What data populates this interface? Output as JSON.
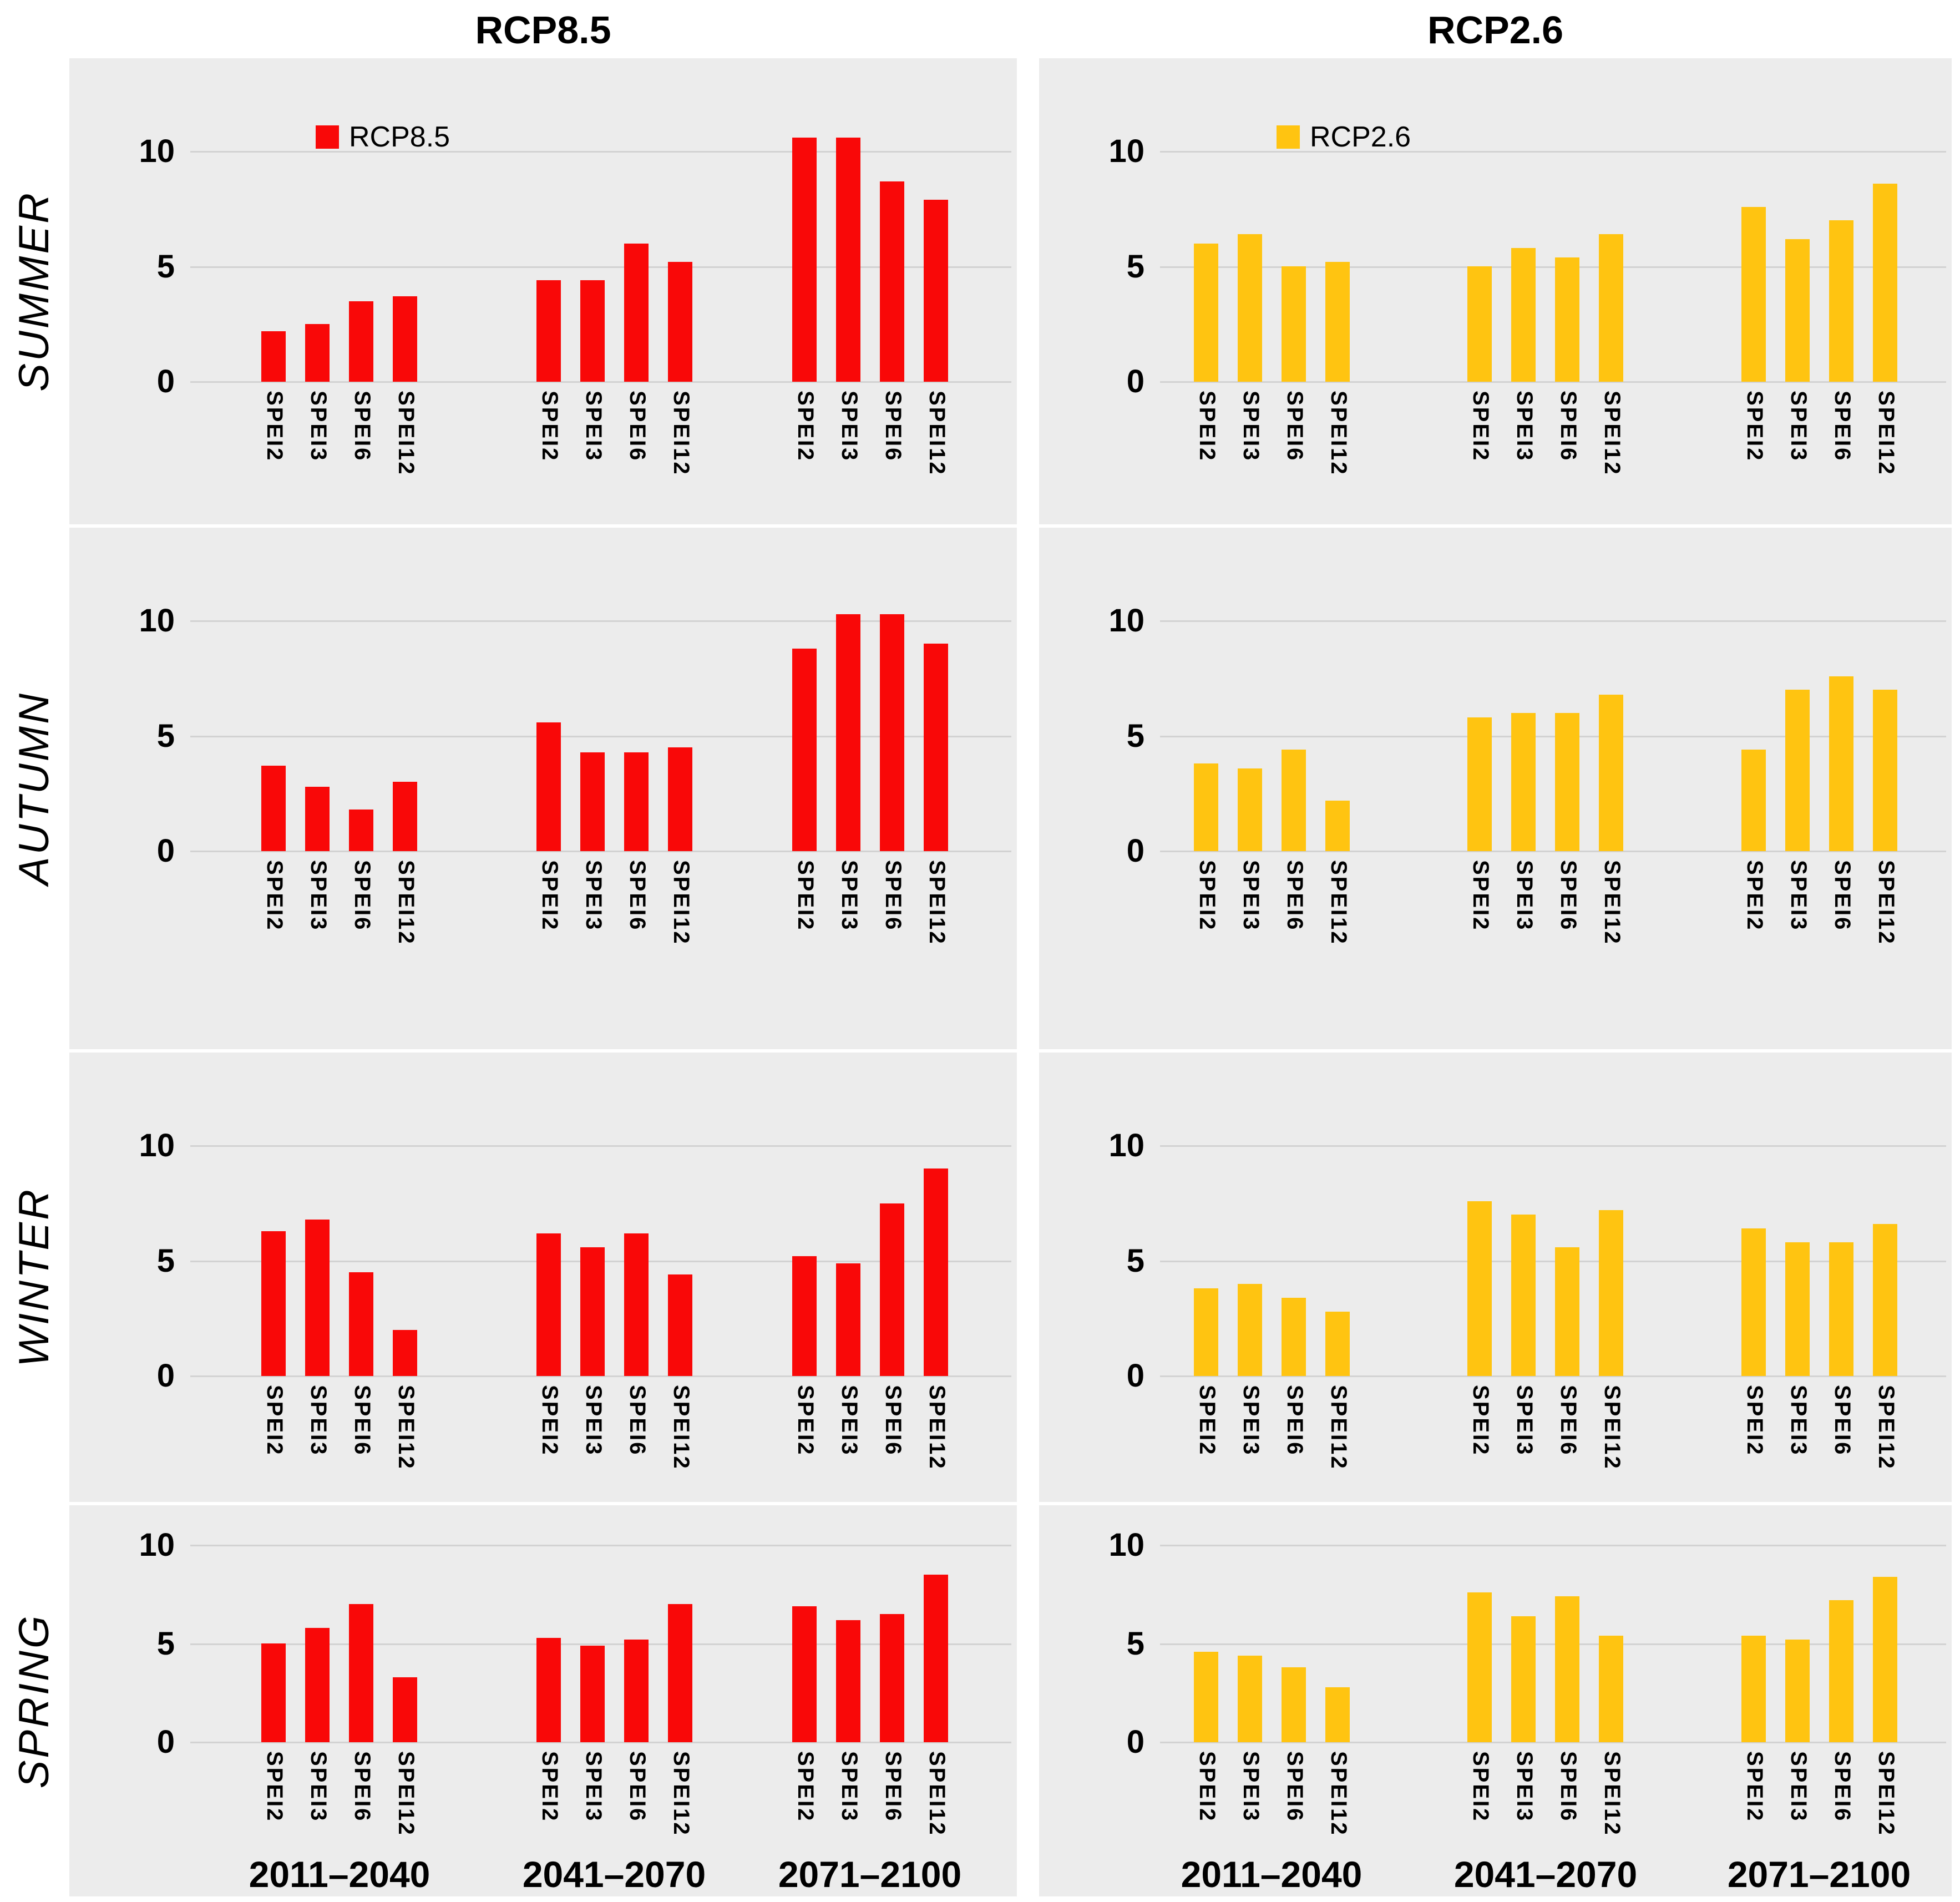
{
  "header": {
    "left_title": "RCP8.5",
    "right_title": "RCP2.6"
  },
  "seasons": [
    "SUMMER",
    "AUTUMN",
    "WINTER",
    "SPRING"
  ],
  "axis": {
    "ticks": [
      "0",
      "5",
      "10"
    ],
    "ylim": [
      0,
      13
    ]
  },
  "categories": [
    "SPEI2",
    "SPEI3",
    "SPEI6",
    "SPEI12"
  ],
  "periods": [
    "2011–2040",
    "2041–2070",
    "2071–2100"
  ],
  "colors": {
    "rcp85": "#F90808",
    "rcp26": "#FFC411",
    "panel_background": "#ECECEC",
    "gridline": "#D2D2D2",
    "text": "#000000"
  },
  "chart_data": [
    {
      "type": "bar",
      "season": "SUMMER",
      "scenario": "RCP8.5",
      "color": "#F90808",
      "legend_label": "RCP8.5",
      "show_legend": true,
      "show_period_labels": false,
      "ylabel": "",
      "categories": [
        "SPEI2",
        "SPEI3",
        "SPEI6",
        "SPEI12"
      ],
      "groups": [
        {
          "period": "2011–2040",
          "values": [
            2.2,
            2.5,
            3.5,
            3.7
          ]
        },
        {
          "period": "2041–2070",
          "values": [
            4.4,
            4.4,
            6.0,
            5.2
          ]
        },
        {
          "period": "2071–2100",
          "values": [
            10.6,
            10.6,
            8.7,
            7.9
          ]
        }
      ]
    },
    {
      "type": "bar",
      "season": "SUMMER",
      "scenario": "RCP2.6",
      "color": "#FFC411",
      "legend_label": "RCP2.6",
      "show_legend": true,
      "show_period_labels": false,
      "ylabel": "",
      "categories": [
        "SPEI2",
        "SPEI3",
        "SPEI6",
        "SPEI12"
      ],
      "groups": [
        {
          "period": "2011–2040",
          "values": [
            6.0,
            6.4,
            5.0,
            5.2
          ]
        },
        {
          "period": "2041–2070",
          "values": [
            5.0,
            5.8,
            5.4,
            6.4
          ]
        },
        {
          "period": "2071–2100",
          "values": [
            7.6,
            6.2,
            7.0,
            8.6
          ]
        }
      ]
    },
    {
      "type": "bar",
      "season": "AUTUMN",
      "scenario": "RCP8.5",
      "color": "#F90808",
      "legend_label": "RCP8.5",
      "show_legend": false,
      "show_period_labels": false,
      "ylabel": "",
      "categories": [
        "SPEI2",
        "SPEI3",
        "SPEI6",
        "SPEI12"
      ],
      "groups": [
        {
          "period": "2011–2040",
          "values": [
            3.7,
            2.8,
            1.8,
            3.0
          ]
        },
        {
          "period": "2041–2070",
          "values": [
            5.6,
            4.3,
            4.3,
            4.5
          ]
        },
        {
          "period": "2071–2100",
          "values": [
            8.8,
            10.3,
            10.3,
            9.0
          ]
        }
      ]
    },
    {
      "type": "bar",
      "season": "AUTUMN",
      "scenario": "RCP2.6",
      "color": "#FFC411",
      "legend_label": "RCP2.6",
      "show_legend": false,
      "show_period_labels": false,
      "ylabel": "",
      "categories": [
        "SPEI2",
        "SPEI3",
        "SPEI6",
        "SPEI12"
      ],
      "groups": [
        {
          "period": "2011–2040",
          "values": [
            3.8,
            3.6,
            4.4,
            2.2
          ]
        },
        {
          "period": "2041–2070",
          "values": [
            5.8,
            6.0,
            6.0,
            6.8
          ]
        },
        {
          "period": "2071–2100",
          "values": [
            4.4,
            7.0,
            7.6,
            7.0
          ]
        }
      ]
    },
    {
      "type": "bar",
      "season": "WINTER",
      "scenario": "RCP8.5",
      "color": "#F90808",
      "legend_label": "RCP8.5",
      "show_legend": false,
      "show_period_labels": false,
      "ylabel": "",
      "categories": [
        "SPEI2",
        "SPEI3",
        "SPEI6",
        "SPEI12"
      ],
      "groups": [
        {
          "period": "2011–2040",
          "values": [
            6.3,
            6.8,
            4.5,
            2.0
          ]
        },
        {
          "period": "2041–2070",
          "values": [
            6.2,
            5.6,
            6.2,
            4.4
          ]
        },
        {
          "period": "2071–2100",
          "values": [
            5.2,
            4.9,
            7.5,
            9.0
          ]
        }
      ]
    },
    {
      "type": "bar",
      "season": "WINTER",
      "scenario": "RCP2.6",
      "color": "#FFC411",
      "legend_label": "RCP2.6",
      "show_legend": false,
      "show_period_labels": false,
      "ylabel": "",
      "categories": [
        "SPEI2",
        "SPEI3",
        "SPEI6",
        "SPEI12"
      ],
      "groups": [
        {
          "period": "2011–2040",
          "values": [
            3.8,
            4.0,
            3.4,
            2.8
          ]
        },
        {
          "period": "2041–2070",
          "values": [
            7.6,
            7.0,
            5.6,
            7.2
          ]
        },
        {
          "period": "2071–2100",
          "values": [
            6.4,
            5.8,
            5.8,
            6.6
          ]
        }
      ]
    },
    {
      "type": "bar",
      "season": "SPRING",
      "scenario": "RCP8.5",
      "color": "#F90808",
      "legend_label": "RCP8.5",
      "show_legend": false,
      "show_period_labels": true,
      "ylabel": "",
      "categories": [
        "SPEI2",
        "SPEI3",
        "SPEI6",
        "SPEI12"
      ],
      "groups": [
        {
          "period": "2011–2040",
          "values": [
            5.0,
            5.8,
            7.0,
            3.3
          ]
        },
        {
          "period": "2041–2070",
          "values": [
            5.3,
            4.9,
            5.2,
            7.0
          ]
        },
        {
          "period": "2071–2100",
          "values": [
            6.9,
            6.2,
            6.5,
            8.5
          ]
        }
      ]
    },
    {
      "type": "bar",
      "season": "SPRING",
      "scenario": "RCP2.6",
      "color": "#FFC411",
      "legend_label": "RCP2.6",
      "show_legend": false,
      "show_period_labels": true,
      "ylabel": "",
      "categories": [
        "SPEI2",
        "SPEI3",
        "SPEI6",
        "SPEI12"
      ],
      "groups": [
        {
          "period": "2011–2040",
          "values": [
            4.6,
            4.4,
            3.8,
            2.8
          ]
        },
        {
          "period": "2041–2070",
          "values": [
            7.6,
            6.4,
            7.4,
            5.4
          ]
        },
        {
          "period": "2071–2100",
          "values": [
            5.4,
            5.2,
            7.2,
            8.4
          ]
        }
      ]
    }
  ]
}
